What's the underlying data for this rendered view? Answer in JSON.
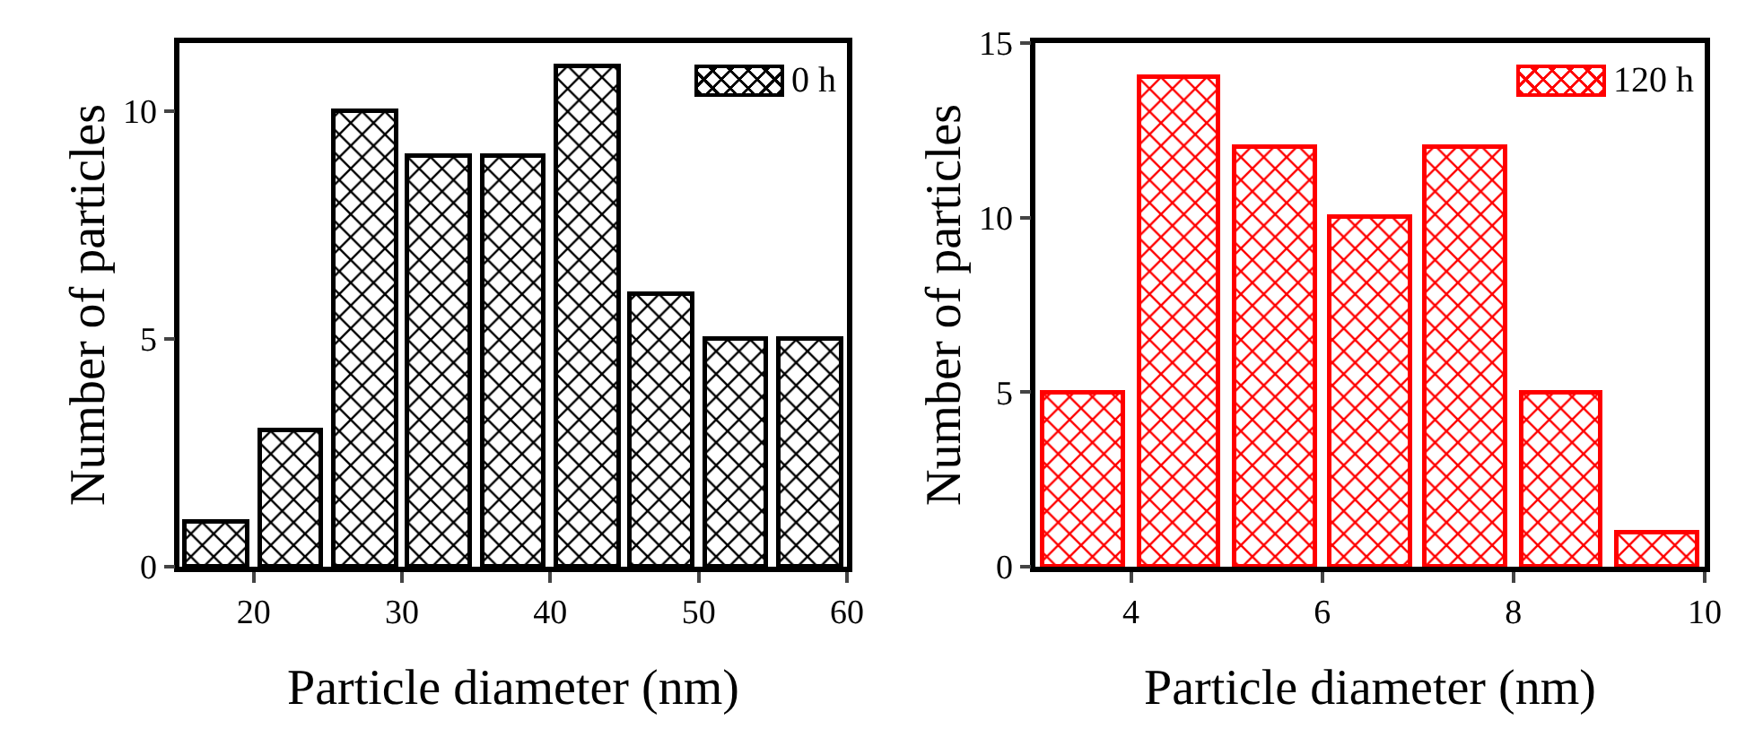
{
  "chart_data": [
    {
      "type": "histogram",
      "xlabel": "Particle diameter (nm)",
      "ylabel": "Number of particles",
      "bins": [
        15,
        20,
        25,
        30,
        35,
        40,
        45,
        50,
        55,
        60
      ],
      "series": [
        {
          "name": "0 h",
          "color": "#000000",
          "values": [
            1,
            3,
            10,
            9,
            9,
            11,
            6,
            5,
            5
          ]
        }
      ],
      "xlim": [
        15,
        60
      ],
      "xticks": [
        20,
        30,
        40,
        50,
        60
      ],
      "ylim": [
        0,
        11.5
      ],
      "yticks": [
        0,
        5,
        10
      ],
      "legend": "top right",
      "grid": false
    },
    {
      "type": "histogram",
      "xlabel": "Particle diameter (nm)",
      "ylabel": "Number of particles",
      "bins": [
        3,
        4,
        5,
        6,
        7,
        8,
        9,
        10
      ],
      "series": [
        {
          "name": "120 h",
          "color": "#ff0000",
          "values": [
            5,
            14,
            12,
            10,
            12,
            5,
            1
          ]
        }
      ],
      "xlim": [
        3,
        10
      ],
      "xticks": [
        4,
        6,
        8,
        10
      ],
      "ylim": [
        0,
        15
      ],
      "yticks": [
        0,
        5,
        10,
        15
      ],
      "legend": "top right",
      "grid": false
    }
  ]
}
